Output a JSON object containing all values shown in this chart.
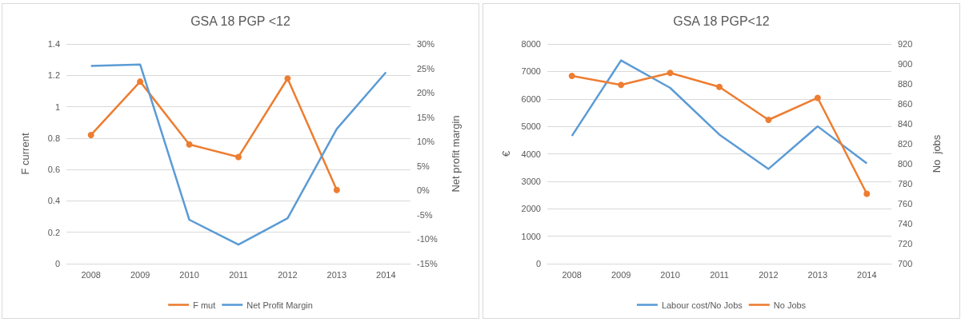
{
  "chart_data": [
    {
      "type": "line",
      "title": "GSA 18 PGP <12",
      "ylabel": "F current",
      "y2label": "Net profit margin",
      "categories": [
        "2008",
        "2009",
        "2010",
        "2011",
        "2012",
        "2013",
        "2014"
      ],
      "series": [
        {
          "name": "F mut",
          "color": "#ed7d31",
          "marker": "circle",
          "values": [
            0.82,
            1.16,
            0.76,
            0.68,
            1.18,
            0.47,
            null
          ]
        },
        {
          "name": "Net Profit Margin",
          "color": "#5b9bd5",
          "marker": "none",
          "axis": "y2",
          "values": [
            25.5,
            25.8,
            -6,
            -11.1,
            -5.7,
            12.6,
            24.2
          ]
        }
      ],
      "ylim": [
        0,
        1.4
      ],
      "yticks": [
        0,
        0.2,
        0.4,
        0.6,
        0.8,
        1,
        1.2,
        1.4
      ],
      "y2lim": [
        -15,
        30
      ],
      "y2ticks": [
        {
          "value": -15,
          "label": "-15%"
        },
        {
          "value": -10,
          "label": "-10%"
        },
        {
          "value": -5,
          "label": "-5%"
        },
        {
          "value": 0,
          "label": "0%"
        },
        {
          "value": 5,
          "label": "5%"
        },
        {
          "value": 10,
          "label": "10%"
        },
        {
          "value": 15,
          "label": "15%"
        },
        {
          "value": 20,
          "label": "20%"
        },
        {
          "value": 25,
          "label": "25%"
        },
        {
          "value": 30,
          "label": "30%"
        }
      ],
      "grid": "y",
      "legend": "bottom",
      "line_style": "solid"
    },
    {
      "type": "line",
      "title": "GSA 18 PGP<12",
      "ylabel": "€",
      "y2label": "No  jobs",
      "categories": [
        "2008",
        "2009",
        "2010",
        "2011",
        "2012",
        "2013",
        "2014"
      ],
      "series": [
        {
          "name": "Labour cost/No Jobs",
          "color": "#5b9bd5",
          "marker": "none",
          "values": [
            4650,
            7400,
            6400,
            4700,
            3450,
            5000,
            3650
          ]
        },
        {
          "name": "No Jobs",
          "color": "#ed7d31",
          "marker": "circle",
          "axis": "y2",
          "values": [
            888,
            879,
            891,
            877,
            844,
            866,
            770
          ]
        }
      ],
      "ylim": [
        0,
        8000
      ],
      "yticks": [
        0,
        1000,
        2000,
        3000,
        4000,
        5000,
        6000,
        7000,
        8000
      ],
      "y2lim": [
        700,
        920
      ],
      "y2ticks": [
        700,
        720,
        740,
        760,
        780,
        800,
        820,
        840,
        860,
        880,
        900,
        920
      ],
      "grid": "y",
      "legend": "bottom",
      "line_style": "solid"
    }
  ]
}
